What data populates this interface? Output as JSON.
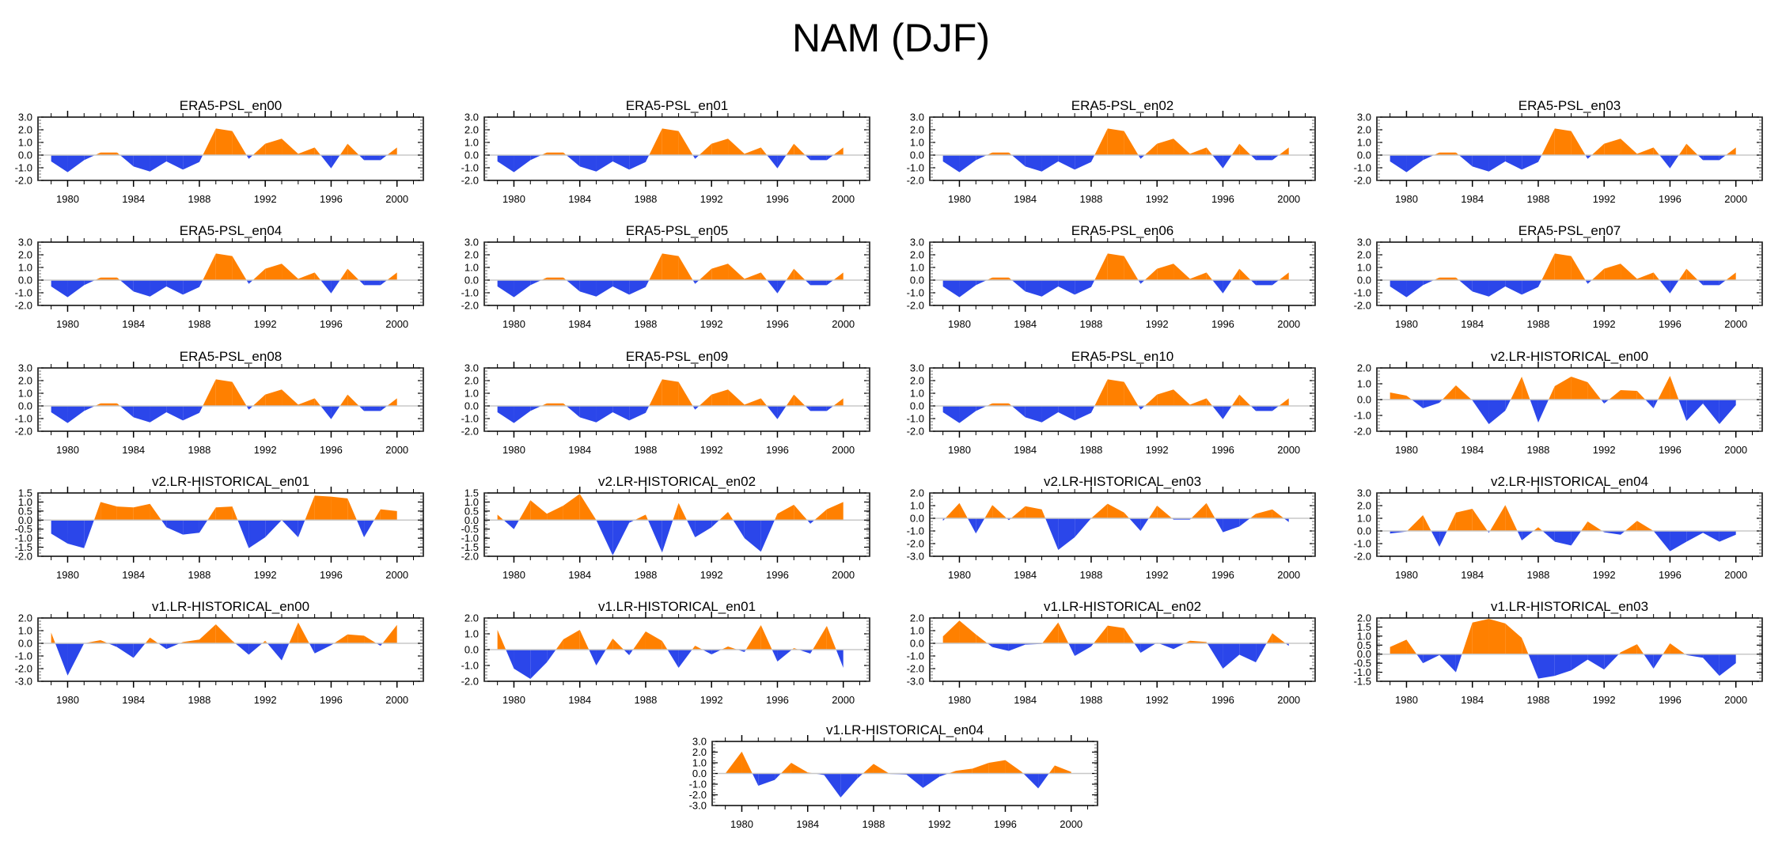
{
  "chart_data": {
    "type": "area",
    "title": "NAM (DJF)",
    "x": [
      1979,
      1980,
      1981,
      1982,
      1983,
      1984,
      1985,
      1986,
      1987,
      1988,
      1989,
      1990,
      1991,
      1992,
      1993,
      1994,
      1995,
      1996,
      1997,
      1998,
      1999,
      2000
    ],
    "xticks_major": [
      1980,
      1984,
      1988,
      1992,
      1996,
      2000
    ],
    "xlim": [
      1978.2,
      2001.6
    ],
    "positive_color": "#ff8000",
    "negative_color": "#2b46ea",
    "zero_line_color": "#c8c8c8",
    "panels": [
      {
        "title": "ERA5-PSL_en00",
        "ylim": [
          -2,
          3
        ],
        "yticks": [
          "-2.0",
          "-1.0",
          "0.0",
          "1.0",
          "2.0",
          "3.0"
        ],
        "values": [
          -0.5,
          -1.35,
          -0.4,
          0.2,
          0.2,
          -0.9,
          -1.3,
          -0.5,
          -1.15,
          -0.55,
          2.1,
          1.9,
          -0.3,
          0.9,
          1.3,
          0.1,
          0.6,
          -1.05,
          0.9,
          -0.4,
          -0.4,
          0.6
        ]
      },
      {
        "title": "ERA5-PSL_en01",
        "ylim": [
          -2,
          3
        ],
        "yticks": [
          "-2.0",
          "-1.0",
          "0.0",
          "1.0",
          "2.0",
          "3.0"
        ],
        "values": [
          -0.5,
          -1.35,
          -0.4,
          0.2,
          0.2,
          -0.9,
          -1.3,
          -0.5,
          -1.15,
          -0.55,
          2.1,
          1.9,
          -0.3,
          0.9,
          1.3,
          0.1,
          0.6,
          -1.05,
          0.9,
          -0.4,
          -0.4,
          0.6
        ]
      },
      {
        "title": "ERA5-PSL_en02",
        "ylim": [
          -2,
          3
        ],
        "yticks": [
          "-2.0",
          "-1.0",
          "0.0",
          "1.0",
          "2.0",
          "3.0"
        ],
        "values": [
          -0.5,
          -1.35,
          -0.4,
          0.2,
          0.2,
          -0.9,
          -1.3,
          -0.5,
          -1.15,
          -0.55,
          2.1,
          1.9,
          -0.3,
          0.9,
          1.3,
          0.1,
          0.6,
          -1.05,
          0.9,
          -0.4,
          -0.4,
          0.6
        ]
      },
      {
        "title": "ERA5-PSL_en03",
        "ylim": [
          -2,
          3
        ],
        "yticks": [
          "-2.0",
          "-1.0",
          "0.0",
          "1.0",
          "2.0",
          "3.0"
        ],
        "values": [
          -0.5,
          -1.35,
          -0.4,
          0.2,
          0.2,
          -0.9,
          -1.3,
          -0.5,
          -1.15,
          -0.55,
          2.1,
          1.9,
          -0.3,
          0.9,
          1.3,
          0.1,
          0.6,
          -1.05,
          0.9,
          -0.4,
          -0.4,
          0.6
        ]
      },
      {
        "title": "ERA5-PSL_en04",
        "ylim": [
          -2,
          3
        ],
        "yticks": [
          "-2.0",
          "-1.0",
          "0.0",
          "1.0",
          "2.0",
          "3.0"
        ],
        "values": [
          -0.5,
          -1.35,
          -0.4,
          0.2,
          0.2,
          -0.9,
          -1.3,
          -0.5,
          -1.15,
          -0.55,
          2.1,
          1.9,
          -0.3,
          0.9,
          1.3,
          0.1,
          0.6,
          -1.05,
          0.9,
          -0.4,
          -0.4,
          0.6
        ]
      },
      {
        "title": "ERA5-PSL_en05",
        "ylim": [
          -2,
          3
        ],
        "yticks": [
          "-2.0",
          "-1.0",
          "0.0",
          "1.0",
          "2.0",
          "3.0"
        ],
        "values": [
          -0.5,
          -1.35,
          -0.4,
          0.2,
          0.2,
          -0.9,
          -1.3,
          -0.5,
          -1.15,
          -0.55,
          2.1,
          1.9,
          -0.3,
          0.9,
          1.3,
          0.1,
          0.6,
          -1.05,
          0.9,
          -0.4,
          -0.4,
          0.6
        ]
      },
      {
        "title": "ERA5-PSL_en06",
        "ylim": [
          -2,
          3
        ],
        "yticks": [
          "-2.0",
          "-1.0",
          "0.0",
          "1.0",
          "2.0",
          "3.0"
        ],
        "values": [
          -0.5,
          -1.35,
          -0.4,
          0.2,
          0.2,
          -0.9,
          -1.3,
          -0.5,
          -1.15,
          -0.55,
          2.1,
          1.9,
          -0.3,
          0.9,
          1.3,
          0.1,
          0.6,
          -1.05,
          0.9,
          -0.4,
          -0.4,
          0.6
        ]
      },
      {
        "title": "ERA5-PSL_en07",
        "ylim": [
          -2,
          3
        ],
        "yticks": [
          "-2.0",
          "-1.0",
          "0.0",
          "1.0",
          "2.0",
          "3.0"
        ],
        "values": [
          -0.5,
          -1.35,
          -0.4,
          0.2,
          0.2,
          -0.9,
          -1.3,
          -0.5,
          -1.15,
          -0.55,
          2.1,
          1.9,
          -0.3,
          0.9,
          1.3,
          0.1,
          0.6,
          -1.05,
          0.9,
          -0.4,
          -0.4,
          0.6
        ]
      },
      {
        "title": "ERA5-PSL_en08",
        "ylim": [
          -2,
          3
        ],
        "yticks": [
          "-2.0",
          "-1.0",
          "0.0",
          "1.0",
          "2.0",
          "3.0"
        ],
        "values": [
          -0.5,
          -1.35,
          -0.4,
          0.2,
          0.2,
          -0.9,
          -1.3,
          -0.5,
          -1.15,
          -0.55,
          2.1,
          1.9,
          -0.3,
          0.9,
          1.3,
          0.1,
          0.6,
          -1.05,
          0.9,
          -0.4,
          -0.4,
          0.6
        ]
      },
      {
        "title": "ERA5-PSL_en09",
        "ylim": [
          -2,
          3
        ],
        "yticks": [
          "-2.0",
          "-1.0",
          "0.0",
          "1.0",
          "2.0",
          "3.0"
        ],
        "values": [
          -0.5,
          -1.35,
          -0.4,
          0.2,
          0.2,
          -0.9,
          -1.3,
          -0.5,
          -1.15,
          -0.55,
          2.1,
          1.9,
          -0.3,
          0.9,
          1.3,
          0.1,
          0.6,
          -1.05,
          0.9,
          -0.4,
          -0.4,
          0.6
        ]
      },
      {
        "title": "ERA5-PSL_en10",
        "ylim": [
          -2,
          3
        ],
        "yticks": [
          "-2.0",
          "-1.0",
          "0.0",
          "1.0",
          "2.0",
          "3.0"
        ],
        "values": [
          -0.5,
          -1.35,
          -0.4,
          0.2,
          0.2,
          -0.9,
          -1.3,
          -0.5,
          -1.15,
          -0.55,
          2.1,
          1.9,
          -0.3,
          0.9,
          1.3,
          0.1,
          0.6,
          -1.05,
          0.9,
          -0.4,
          -0.4,
          0.6
        ]
      },
      {
        "title": "v2.LR-HISTORICAL_en00",
        "ylim": [
          -2,
          2
        ],
        "yticks": [
          "-2.0",
          "-1.0",
          "0.0",
          "1.0",
          "2.0"
        ],
        "values": [
          0.45,
          0.25,
          -0.55,
          -0.2,
          0.9,
          -0.05,
          -1.55,
          -0.7,
          1.45,
          -1.45,
          0.85,
          1.45,
          1.1,
          -0.25,
          0.6,
          0.55,
          -0.55,
          1.5,
          -1.35,
          -0.25,
          -1.55,
          -0.35
        ]
      },
      {
        "title": "v2.LR-HISTORICAL_en01",
        "ylim": [
          -2,
          1.5
        ],
        "yticks": [
          "-2.0",
          "-1.5",
          "-1.0",
          "-0.5",
          "0.0",
          "0.5",
          "1.0",
          "1.5"
        ],
        "values": [
          -0.75,
          -1.3,
          -1.55,
          1.0,
          0.75,
          0.7,
          0.9,
          -0.4,
          -0.8,
          -0.7,
          0.7,
          0.75,
          -1.55,
          -0.95,
          0.0,
          -0.95,
          1.35,
          1.3,
          1.2,
          -0.95,
          0.6,
          0.5
        ]
      },
      {
        "title": "v2.LR-HISTORICAL_en02",
        "ylim": [
          -2,
          1.5
        ],
        "yticks": [
          "-2.0",
          "-1.5",
          "-1.0",
          "-0.5",
          "0.0",
          "0.5",
          "1.0",
          "1.5"
        ],
        "values": [
          0.3,
          -0.5,
          1.1,
          0.35,
          0.8,
          1.45,
          0.0,
          -1.95,
          -0.15,
          0.3,
          -1.8,
          0.95,
          -0.95,
          -0.4,
          0.45,
          -1.0,
          -1.75,
          0.35,
          0.85,
          -0.2,
          0.6,
          1.0
        ]
      },
      {
        "title": "v2.LR-HISTORICAL_en03",
        "ylim": [
          -3,
          2
        ],
        "yticks": [
          "-3.0",
          "-2.0",
          "-1.0",
          "0.0",
          "1.0",
          "2.0"
        ],
        "values": [
          -0.2,
          1.2,
          -1.2,
          1.05,
          -0.15,
          0.95,
          0.7,
          -2.5,
          -1.5,
          0.0,
          1.15,
          0.45,
          -1.0,
          1.0,
          -0.1,
          -0.1,
          1.2,
          -1.1,
          -0.65,
          0.35,
          0.7,
          -0.3
        ]
      },
      {
        "title": "v2.LR-HISTORICAL_en04",
        "ylim": [
          -2,
          3
        ],
        "yticks": [
          "-2.0",
          "-1.0",
          "0.0",
          "1.0",
          "2.0",
          "3.0"
        ],
        "values": [
          -0.2,
          -0.05,
          1.25,
          -1.25,
          1.45,
          1.75,
          -0.15,
          2.05,
          -0.75,
          0.3,
          -0.85,
          -1.15,
          0.75,
          -0.1,
          -0.3,
          0.8,
          0.0,
          -1.6,
          -0.85,
          -0.15,
          -0.85,
          -0.3
        ]
      },
      {
        "title": "v1.LR-HISTORICAL_en00",
        "ylim": [
          -3,
          2
        ],
        "yticks": [
          "-3.0",
          "-2.0",
          "-1.0",
          "0.0",
          "1.0",
          "2.0"
        ],
        "values": [
          0.85,
          -2.55,
          0.0,
          0.25,
          -0.3,
          -1.15,
          0.45,
          -0.45,
          0.1,
          0.3,
          1.5,
          0.2,
          -0.9,
          0.2,
          -1.35,
          1.65,
          -0.8,
          -0.15,
          0.7,
          0.6,
          -0.2,
          1.45
        ]
      },
      {
        "title": "v1.LR-HISTORICAL_en01",
        "ylim": [
          -2,
          2
        ],
        "yticks": [
          "-2.0",
          "-1.0",
          "0.0",
          "1.0",
          "2.0"
        ],
        "values": [
          1.25,
          -1.2,
          -1.85,
          -0.8,
          0.65,
          1.25,
          -1.0,
          0.7,
          -0.35,
          1.15,
          0.55,
          -1.15,
          0.25,
          -0.3,
          0.2,
          -0.15,
          1.55,
          -0.75,
          0.1,
          -0.25,
          1.5,
          -1.15
        ]
      },
      {
        "title": "v1.LR-HISTORICAL_en02",
        "ylim": [
          -3,
          2
        ],
        "yticks": [
          "-3.0",
          "-2.0",
          "-1.0",
          "0.0",
          "1.0",
          "2.0"
        ],
        "values": [
          0.55,
          1.8,
          0.7,
          -0.3,
          -0.6,
          -0.1,
          -0.05,
          1.65,
          -1.0,
          -0.25,
          1.4,
          1.2,
          -0.75,
          0.05,
          -0.45,
          0.2,
          0.1,
          -2.0,
          -0.9,
          -1.5,
          0.8,
          -0.2
        ]
      },
      {
        "title": "v1.LR-HISTORICAL_en03",
        "ylim": [
          -1.5,
          2
        ],
        "yticks": [
          "-1.5",
          "-1.0",
          "-0.5",
          "0.0",
          "0.5",
          "1.0",
          "1.5",
          "2.0"
        ],
        "values": [
          0.4,
          0.8,
          -0.5,
          -0.05,
          -1.0,
          1.75,
          1.95,
          1.7,
          0.9,
          -1.35,
          -1.2,
          -0.9,
          -0.3,
          -0.85,
          0.1,
          0.55,
          -0.8,
          0.6,
          -0.05,
          -0.2,
          -1.2,
          -0.5
        ]
      },
      {
        "title": "v1.LR-HISTORICAL_en04",
        "ylim": [
          -3,
          3
        ],
        "yticks": [
          "-3.0",
          "-2.0",
          "-1.0",
          "0.0",
          "1.0",
          "2.0",
          "3.0"
        ],
        "values": [
          0.0,
          2.05,
          -1.15,
          -0.6,
          1.0,
          0.1,
          -0.15,
          -2.25,
          -0.5,
          0.9,
          -0.05,
          -0.1,
          -1.35,
          -0.3,
          0.25,
          0.45,
          1.0,
          1.25,
          0.15,
          -1.4,
          0.75,
          0.15
        ]
      }
    ]
  }
}
